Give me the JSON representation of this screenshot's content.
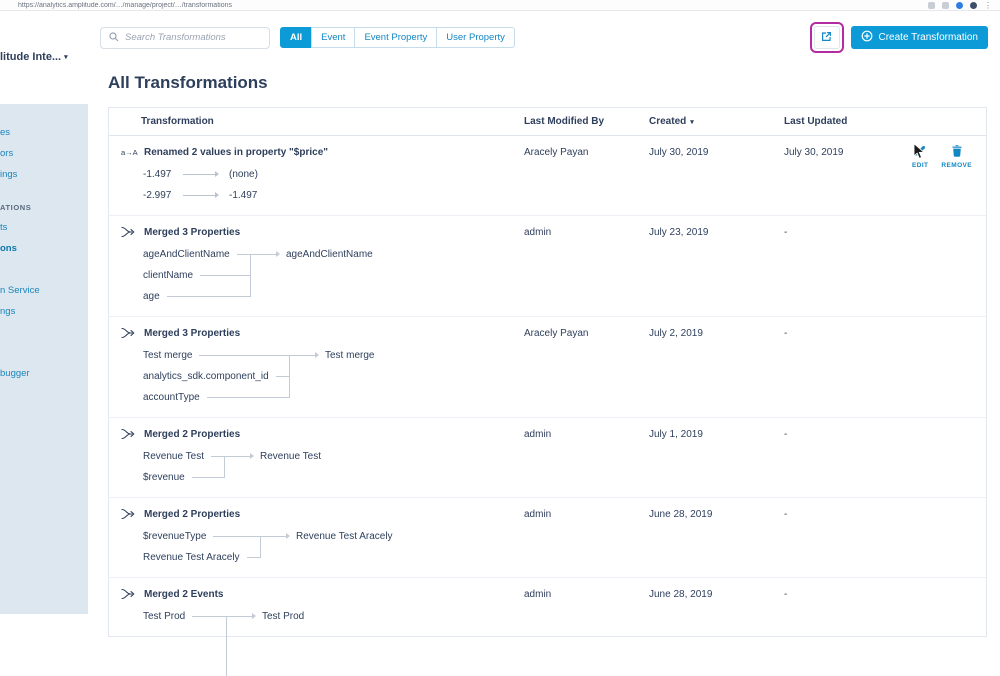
{
  "browser": {
    "url": "https://analytics.amplitude.com/…/manage/project/…/transformations"
  },
  "sidebar": {
    "org_label": "litude Inte...",
    "items": [
      {
        "label": "es"
      },
      {
        "label": "ors"
      },
      {
        "label": "ings"
      },
      {
        "label": "ATIONS",
        "header": true
      },
      {
        "label": "ts"
      },
      {
        "label": "ons",
        "selected": true
      },
      {
        "label": "n Service",
        "gap": "md"
      },
      {
        "label": "ngs"
      },
      {
        "label": "bugger",
        "gap": "lg"
      }
    ]
  },
  "toolbar": {
    "search_placeholder": "Search Transformations",
    "filters": [
      "All",
      "Event",
      "Event Property",
      "User Property"
    ],
    "active_filter": "All",
    "create_label": "Create Transformation"
  },
  "page": {
    "title": "All Transformations"
  },
  "table": {
    "columns": [
      "Transformation",
      "Last Modified By",
      "Created",
      "Last Updated"
    ],
    "sorted_column": "Created",
    "rows": [
      {
        "title": "Renamed 2 values in property \"$price\"",
        "icon": "rename",
        "last_modified_by": "Aracely Payan",
        "created": "July 30, 2019",
        "last_updated": "July 30, 2019",
        "actions": [
          "EDIT",
          "REMOVE"
        ],
        "diagram": {
          "type": "rename",
          "pairs": [
            {
              "from": "-1.497",
              "to": "(none)"
            },
            {
              "from": "-2.997",
              "to": "-1.497"
            }
          ]
        }
      },
      {
        "title": "Merged 3 Properties",
        "icon": "merge",
        "last_modified_by": "admin",
        "created": "July 23, 2019",
        "last_updated": "-",
        "diagram": {
          "type": "merge",
          "sources": [
            "ageAndClientName",
            "clientName",
            "age"
          ],
          "target": "ageAndClientName"
        }
      },
      {
        "title": "Merged 3 Properties",
        "icon": "merge",
        "last_modified_by": "Aracely Payan",
        "created": "July 2, 2019",
        "last_updated": "-",
        "diagram": {
          "type": "merge",
          "sources": [
            "Test merge",
            "analytics_sdk.component_id",
            "accountType"
          ],
          "target": "Test merge"
        }
      },
      {
        "title": "Merged 2 Properties",
        "icon": "merge",
        "last_modified_by": "admin",
        "created": "July 1, 2019",
        "last_updated": "-",
        "diagram": {
          "type": "merge",
          "sources": [
            "Revenue Test",
            "$revenue"
          ],
          "target": "Revenue Test"
        }
      },
      {
        "title": "Merged 2 Properties",
        "icon": "merge",
        "last_modified_by": "admin",
        "created": "June 28, 2019",
        "last_updated": "-",
        "diagram": {
          "type": "merge",
          "sources": [
            "$revenueType",
            "Revenue Test Aracely"
          ],
          "target": "Revenue Test Aracely"
        }
      },
      {
        "title": "Merged 2 Events",
        "icon": "merge",
        "last_modified_by": "admin",
        "created": "June 28, 2019",
        "last_updated": "-",
        "diagram": {
          "type": "merge",
          "sources": [
            "Test Prod"
          ],
          "target": "Test Prod",
          "extend": true
        }
      }
    ]
  },
  "colors": {
    "primary_blue": "#0d9bd8",
    "link_blue": "#1287c4",
    "navy": "#2e3f5c",
    "sidebar_bg": "#dde7ef",
    "annotation_magenta": "#b32ba0"
  }
}
